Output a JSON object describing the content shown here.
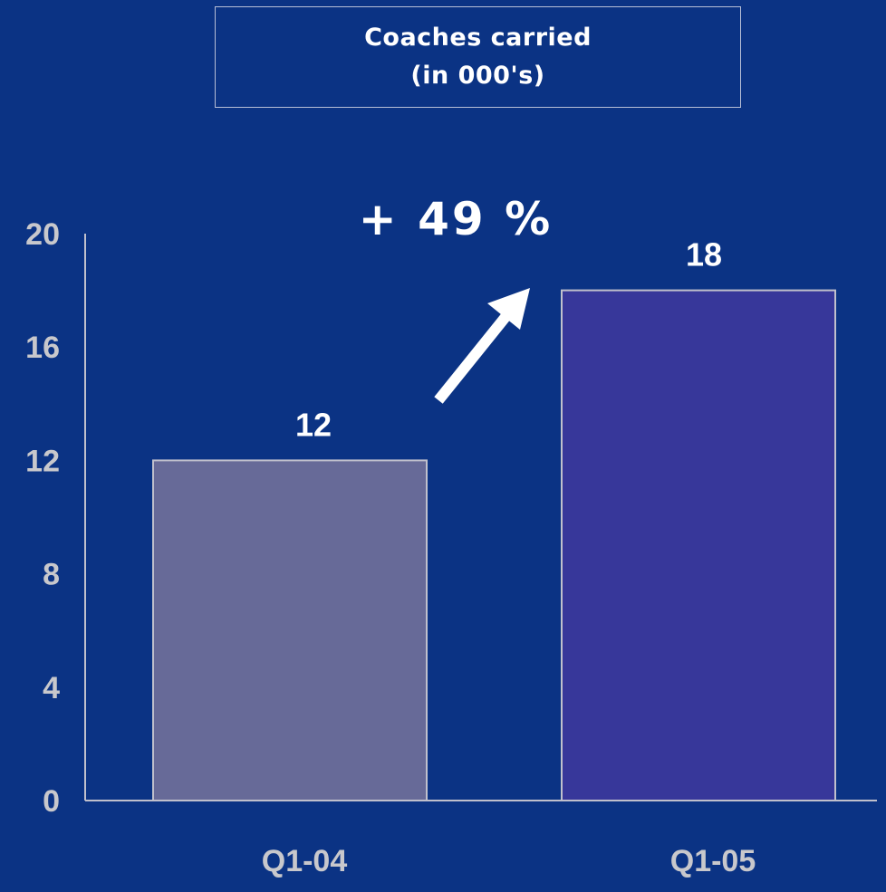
{
  "title": {
    "line1": "Coaches carried",
    "line2": "(in 000's)"
  },
  "annotation": {
    "growth": "+ 49 %",
    "arrow_icon": "up-right-arrow-icon"
  },
  "colors": {
    "background": "#0b3384",
    "bar_q1_04": "#676a98",
    "bar_q1_05": "#37379a",
    "bar_border": "#c0c0cc",
    "axis": "#c0c0cc",
    "label_grey": "#c8c8cc",
    "label_white": "#ffffff"
  },
  "chart_data": {
    "type": "bar",
    "title": "Coaches carried (in 000's)",
    "categories": [
      "Q1-04",
      "Q1-05"
    ],
    "values": [
      12,
      18
    ],
    "data_labels": [
      "12",
      "18"
    ],
    "ylim": [
      0,
      20
    ],
    "yticks": [
      "0",
      "4",
      "8",
      "12",
      "16",
      "20"
    ],
    "ytick_values": [
      0,
      4,
      8,
      12,
      16,
      20
    ],
    "grid": false,
    "legend": "none",
    "annotation": "+ 49 %"
  }
}
